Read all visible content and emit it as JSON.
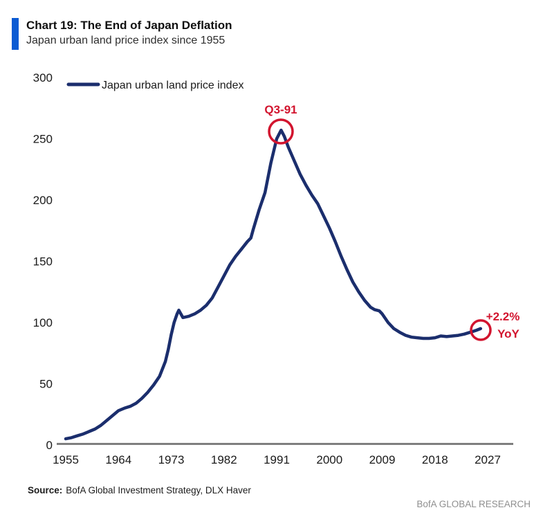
{
  "header": {
    "title": "Chart 19: The End of Japan Deflation",
    "subtitle": "Japan urban land price index since 1955"
  },
  "legend": {
    "label": "Japan urban land price index"
  },
  "annotations": {
    "peak": {
      "label": "Q3-91"
    },
    "latest": {
      "line1": "+2.2%",
      "line2": "YoY"
    }
  },
  "source": {
    "label": "Source:",
    "text": "BofA Global Investment Strategy, DLX Haver"
  },
  "footer": {
    "brand": "BofA GLOBAL RESEARCH"
  },
  "colors": {
    "line": "#1b2e6d",
    "accent_red": "#d2142e",
    "title_bar_blue": "#0b5bd3",
    "axis_gray": "#7f7f7f",
    "footer_gray": "#8f8f8f"
  },
  "chart_data": {
    "type": "line",
    "title": "Japan urban land price index since 1955",
    "xlabel": "",
    "ylabel": "",
    "xlim": [
      1955,
      2027
    ],
    "ylim": [
      0,
      300
    ],
    "xticks": [
      1955,
      1964,
      1973,
      1982,
      1991,
      2000,
      2009,
      2018,
      2027
    ],
    "yticks": [
      0,
      50,
      100,
      150,
      200,
      250,
      300
    ],
    "grid": false,
    "legend_position": "top-left",
    "series": [
      {
        "name": "Japan urban land price index",
        "points": [
          [
            1955,
            5
          ],
          [
            1956,
            6
          ],
          [
            1957,
            7.5
          ],
          [
            1958,
            9
          ],
          [
            1959,
            11
          ],
          [
            1960,
            13
          ],
          [
            1961,
            16
          ],
          [
            1962,
            20
          ],
          [
            1963,
            24
          ],
          [
            1964,
            28
          ],
          [
            1965,
            30
          ],
          [
            1966,
            31.5
          ],
          [
            1967,
            34
          ],
          [
            1968,
            38
          ],
          [
            1969,
            43
          ],
          [
            1970,
            49
          ],
          [
            1971,
            56
          ],
          [
            1972,
            68
          ],
          [
            1972.5,
            78
          ],
          [
            1973,
            90
          ],
          [
            1973.5,
            100
          ],
          [
            1974,
            107
          ],
          [
            1974.3,
            110
          ],
          [
            1975,
            104
          ],
          [
            1976,
            105
          ],
          [
            1977,
            107
          ],
          [
            1978,
            110
          ],
          [
            1979,
            114
          ],
          [
            1980,
            120
          ],
          [
            1981,
            129
          ],
          [
            1982,
            138
          ],
          [
            1983,
            147
          ],
          [
            1984,
            154
          ],
          [
            1985,
            160
          ],
          [
            1986,
            166
          ],
          [
            1986.6,
            169
          ],
          [
            1987,
            176
          ],
          [
            1988,
            192
          ],
          [
            1989,
            206
          ],
          [
            1990,
            230
          ],
          [
            1991,
            250
          ],
          [
            1991.75,
            257
          ],
          [
            1992.3,
            252
          ],
          [
            1993,
            243
          ],
          [
            1994,
            232
          ],
          [
            1995,
            221
          ],
          [
            1996,
            212
          ],
          [
            1997,
            204
          ],
          [
            1998,
            197
          ],
          [
            1999,
            187
          ],
          [
            2000,
            177
          ],
          [
            2001,
            166
          ],
          [
            2002,
            154
          ],
          [
            2003,
            143
          ],
          [
            2004,
            133
          ],
          [
            2005,
            125
          ],
          [
            2006,
            118
          ],
          [
            2007,
            112.5
          ],
          [
            2007.7,
            110.5
          ],
          [
            2008.5,
            109.5
          ],
          [
            2009,
            107
          ],
          [
            2010,
            100
          ],
          [
            2011,
            95
          ],
          [
            2012,
            92
          ],
          [
            2013,
            89.5
          ],
          [
            2014,
            88
          ],
          [
            2015,
            87.5
          ],
          [
            2016,
            87
          ],
          [
            2017,
            87
          ],
          [
            2018,
            87.5
          ],
          [
            2019,
            89
          ],
          [
            2020,
            88.5
          ],
          [
            2021,
            89
          ],
          [
            2022,
            89.5
          ],
          [
            2023,
            90.5
          ],
          [
            2024,
            92
          ],
          [
            2025,
            93.5
          ],
          [
            2025.8,
            95
          ]
        ]
      }
    ],
    "annotation_points": [
      {
        "label": "Q3-91",
        "year": 1991.75,
        "value": 257
      },
      {
        "label": "+2.2% YoY",
        "year": 2025.8,
        "value": 95
      }
    ]
  }
}
